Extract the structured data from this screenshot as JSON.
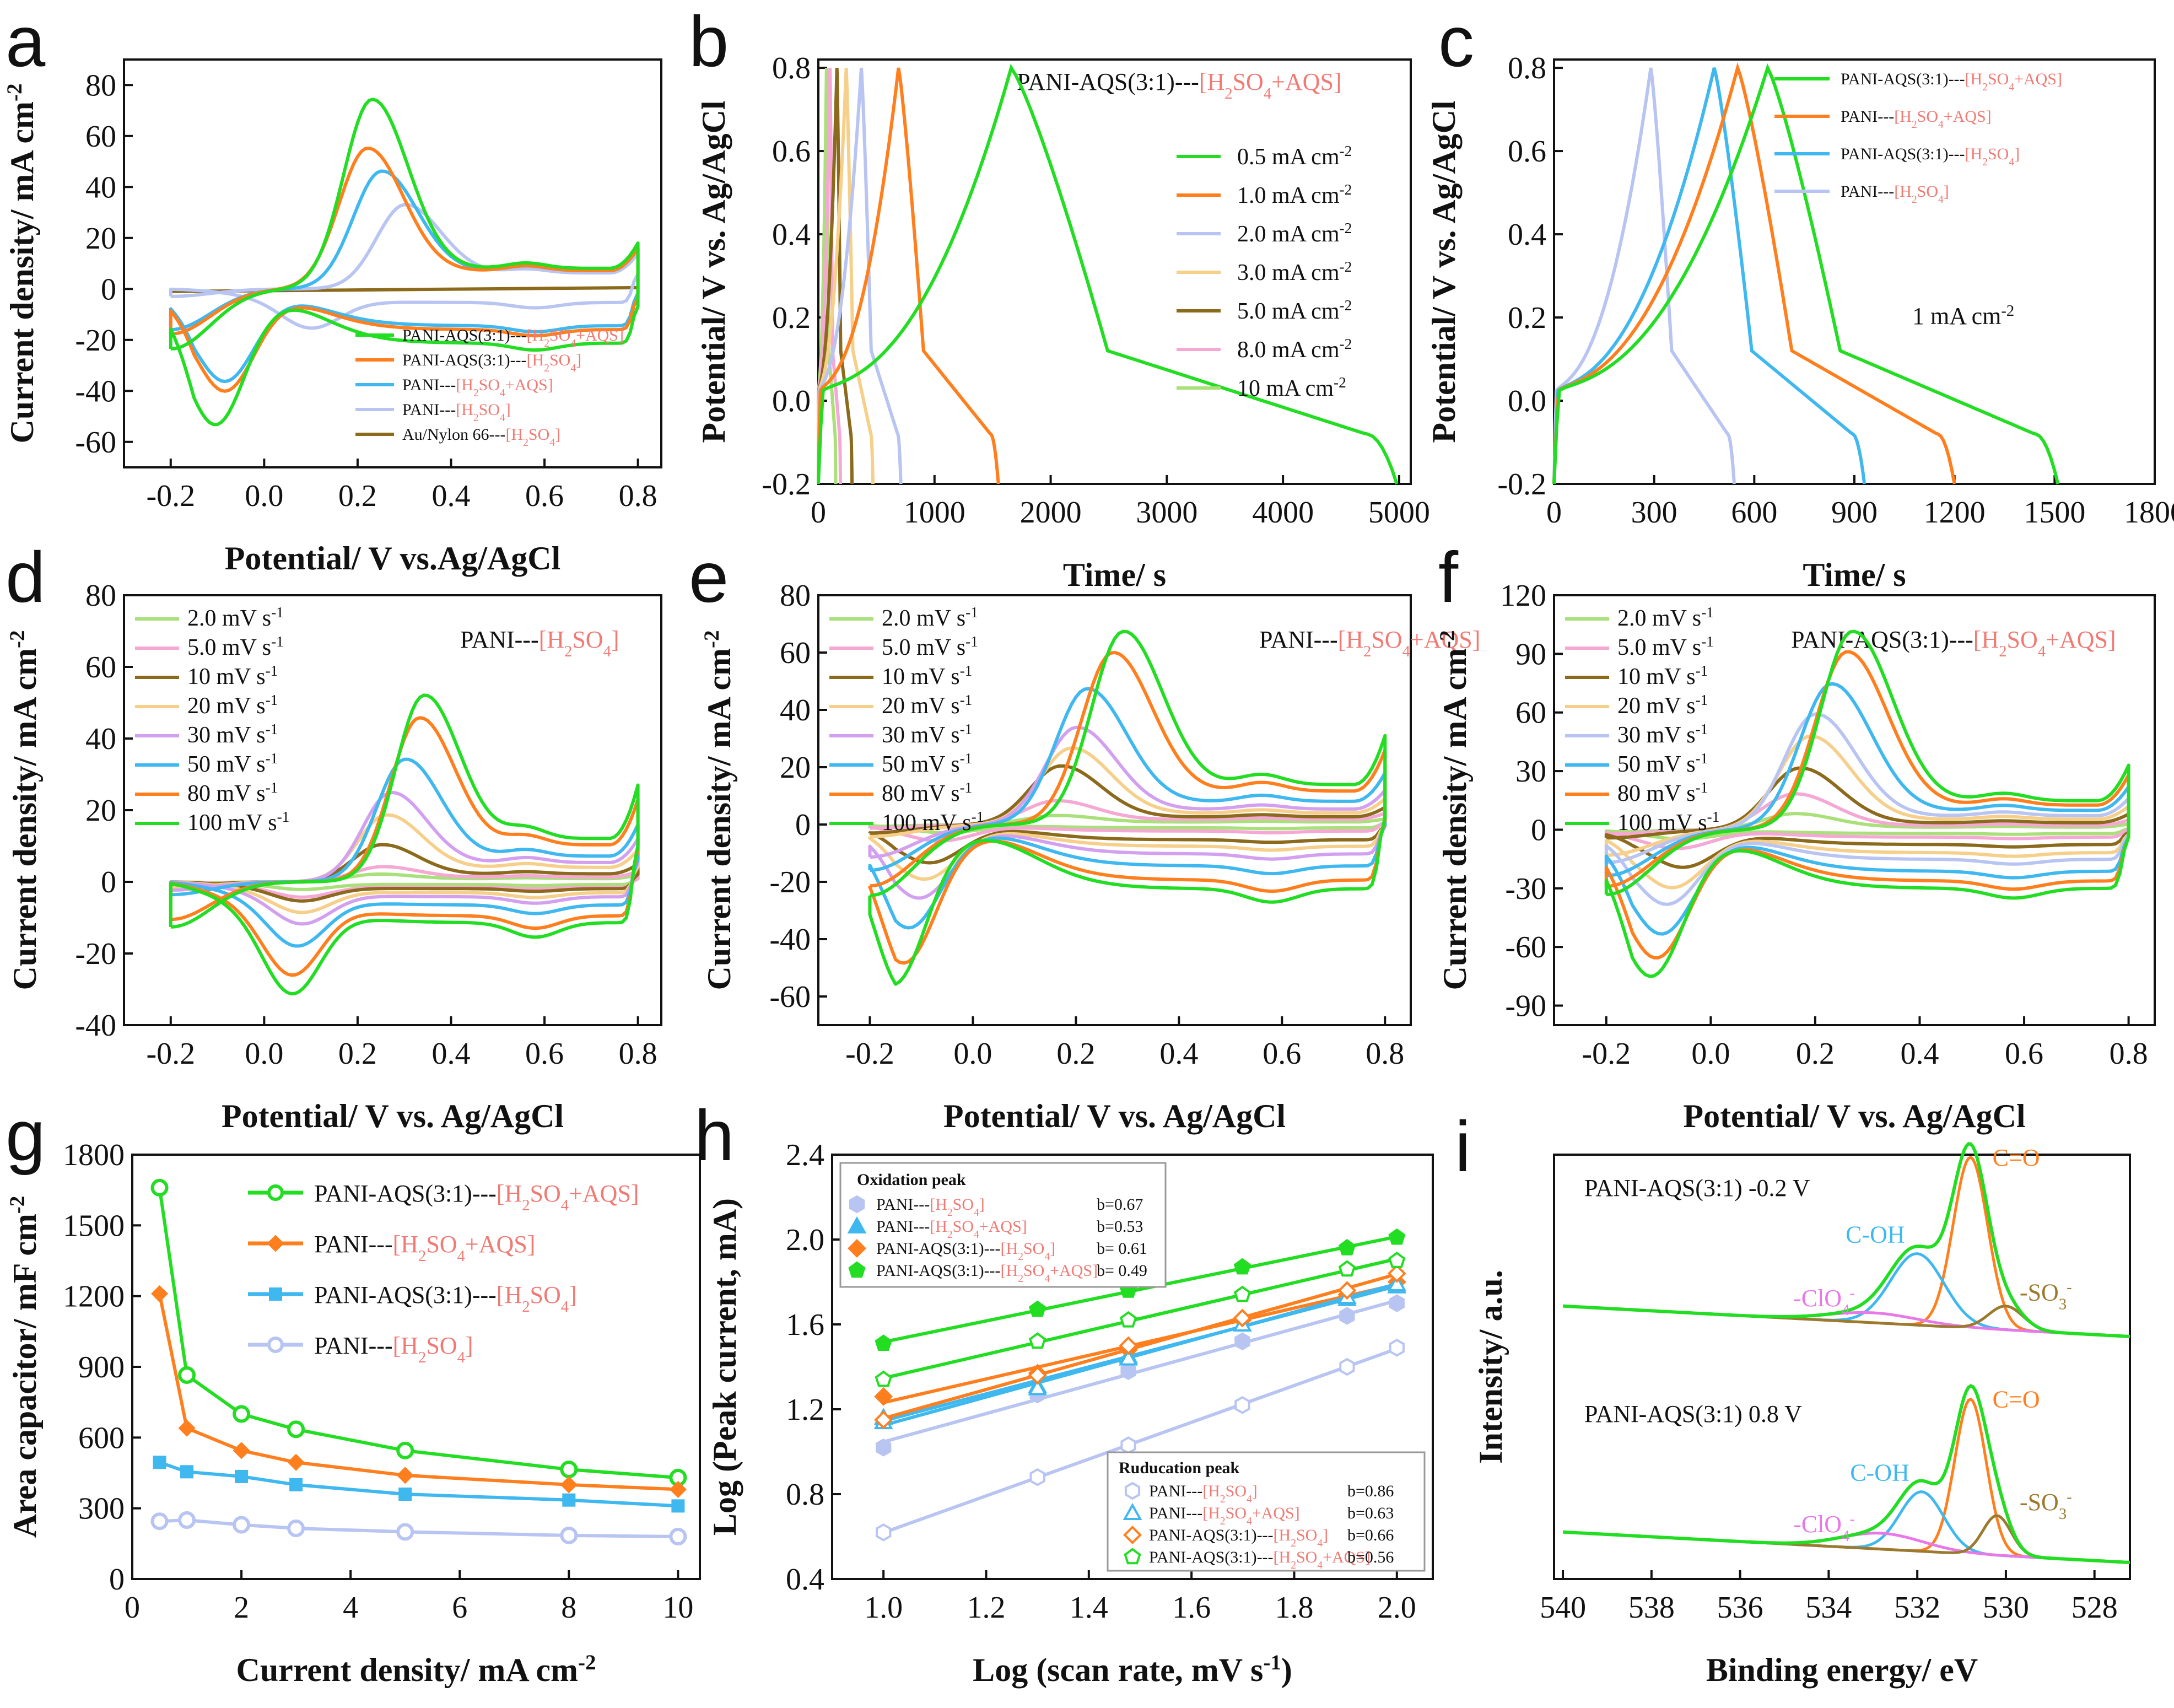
{
  "colors": {
    "green": "#22dd22",
    "orange": "#ff7f1e",
    "blue": "#3fb8f0",
    "lavender": "#b8c4f2",
    "brown": "#8c6a1c",
    "yellow": "#f6cf8a",
    "pink": "#f5a8d4",
    "lightgreen": "#a9e07a",
    "purple": "#d3a0f0",
    "magenta": "#e878e8",
    "olive": "#9b7a2e",
    "red": "#f07a74"
  },
  "chart_data": [
    {
      "id": "a",
      "panel_label": "a",
      "type": "line",
      "xlabel": "Potential/ V vs.Ag/AgCl",
      "ylabel": "Current density/ mA cm",
      "xlim": [
        -0.3,
        0.85
      ],
      "ylim": [
        -70,
        90
      ],
      "xticks": [
        -0.2,
        0.0,
        0.2,
        0.4,
        0.6,
        0.8
      ],
      "yticks": [
        -60,
        -40,
        -20,
        0,
        20,
        40,
        60,
        80
      ],
      "series": [
        {
          "name": "PANI-AQS(3:1)---",
          "tag": "[H2SO4+AQS]",
          "color": "green",
          "ox_peak": [
            0.23,
            73
          ],
          "red_peak": [
            -0.1,
            -56
          ],
          "end_current": 18
        },
        {
          "name": "PANI-AQS(3:1)---",
          "tag": "[H2SO4]",
          "color": "orange",
          "ox_peak": [
            0.22,
            54
          ],
          "red_peak": [
            -0.08,
            -42
          ],
          "end_current": 16
        },
        {
          "name": "PANI---",
          "tag": "[H2SO4+AQS]",
          "color": "blue",
          "ox_peak": [
            0.25,
            45
          ],
          "red_peak": [
            -0.08,
            -38
          ],
          "end_current": 16
        },
        {
          "name": "PANI---",
          "tag": "[H2SO4]",
          "color": "lavender",
          "ox_peak": [
            0.3,
            32
          ],
          "red_peak": [
            0.1,
            -14
          ],
          "end_current": 14
        },
        {
          "name": "Au/Nylon 66---",
          "tag": "[H2SO4]",
          "color": "brown",
          "ox_peak": [
            0.3,
            0.5
          ],
          "red_peak": [
            0.3,
            -0.5
          ],
          "end_current": 1
        }
      ]
    },
    {
      "id": "b",
      "panel_label": "b",
      "type": "line",
      "xlabel": "Time/ s",
      "ylabel": "Potential/ V vs. Ag/AgCl",
      "title": "PANI-AQS(3:1)---",
      "title_tag": "[H2SO4+AQS]",
      "xlim": [
        0,
        5100
      ],
      "ylim": [
        -0.2,
        0.82
      ],
      "xticks": [
        0,
        1000,
        2000,
        3000,
        4000,
        5000
      ],
      "yticks": [
        -0.2,
        0.0,
        0.2,
        0.4,
        0.6,
        0.8
      ],
      "series": [
        {
          "name": "0.5 mA cm",
          "color": "green",
          "peak_time": 1660,
          "end_time": 4980
        },
        {
          "name": "1.0 mA cm",
          "color": "orange",
          "peak_time": 690,
          "end_time": 1550
        },
        {
          "name": "2.0 mA cm",
          "color": "lavender",
          "peak_time": 370,
          "end_time": 710
        },
        {
          "name": "3.0 mA cm",
          "color": "yellow",
          "peak_time": 240,
          "end_time": 470
        },
        {
          "name": "5.0 mA cm",
          "color": "brown",
          "peak_time": 160,
          "end_time": 290
        },
        {
          "name": "8.0 mA cm",
          "color": "pink",
          "peak_time": 100,
          "end_time": 190
        },
        {
          "name": "10 mA cm",
          "color": "lightgreen",
          "peak_time": 70,
          "end_time": 150
        }
      ]
    },
    {
      "id": "c",
      "panel_label": "c",
      "type": "line",
      "xlabel": "Time/ s",
      "ylabel": "Potential/ V vs. Ag/AgCl",
      "annotation": "1 mA cm",
      "xlim": [
        0,
        1800
      ],
      "ylim": [
        -0.2,
        0.82
      ],
      "xticks": [
        0,
        300,
        600,
        900,
        1200,
        1500,
        1800
      ],
      "yticks": [
        -0.2,
        0.0,
        0.2,
        0.4,
        0.6,
        0.8
      ],
      "series": [
        {
          "name": "PANI-AQS(3:1)---",
          "tag": "[H2SO4+AQS]",
          "color": "green",
          "peak_time": 640,
          "end_time": 1510
        },
        {
          "name": "PANI---",
          "tag": "[H2SO4+AQS]",
          "color": "orange",
          "peak_time": 550,
          "end_time": 1200
        },
        {
          "name": "PANI-AQS(3:1)---",
          "tag": "[H2SO4]",
          "color": "blue",
          "peak_time": 480,
          "end_time": 930
        },
        {
          "name": "PANI---",
          "tag": "[H2SO4]",
          "color": "lavender",
          "peak_time": 290,
          "end_time": 540
        }
      ]
    },
    {
      "id": "d",
      "panel_label": "d",
      "type": "line",
      "xlabel": "Potential/ V vs. Ag/AgCl",
      "ylabel": "Current density/ mA cm",
      "title": "PANI---",
      "title_tag": "[H2SO4]",
      "xlim": [
        -0.3,
        0.85
      ],
      "ylim": [
        -40,
        80
      ],
      "xticks": [
        -0.2,
        0.0,
        0.2,
        0.4,
        0.6,
        0.8
      ],
      "yticks": [
        -40,
        -20,
        0,
        20,
        40,
        60,
        80
      ],
      "series": [
        {
          "name": "2.0 mV s",
          "color": "lightgreen",
          "ox_peak": [
            0.24,
            2
          ],
          "red_peak": [
            0.08,
            -2
          ],
          "end_current": 2
        },
        {
          "name": "5.0 mV s",
          "color": "pink",
          "ox_peak": [
            0.25,
            4
          ],
          "red_peak": [
            0.08,
            -4
          ],
          "end_current": 3
        },
        {
          "name": "10 mV s",
          "color": "brown",
          "ox_peak": [
            0.25,
            10
          ],
          "red_peak": [
            0.08,
            -5
          ],
          "end_current": 5
        },
        {
          "name": "20 mV s",
          "color": "yellow",
          "ox_peak": [
            0.26,
            18
          ],
          "red_peak": [
            0.08,
            -8
          ],
          "end_current": 9
        },
        {
          "name": "30 mV s",
          "color": "purple",
          "ox_peak": [
            0.27,
            24
          ],
          "red_peak": [
            0.08,
            -11
          ],
          "end_current": 12
        },
        {
          "name": "50 mV s",
          "color": "blue",
          "ox_peak": [
            0.3,
            33
          ],
          "red_peak": [
            0.07,
            -17
          ],
          "end_current": 16
        },
        {
          "name": "80 mV s",
          "color": "orange",
          "ox_peak": [
            0.33,
            44
          ],
          "red_peak": [
            0.06,
            -25
          ],
          "end_current": 23
        },
        {
          "name": "100 mV s",
          "color": "green",
          "ox_peak": [
            0.34,
            50
          ],
          "red_peak": [
            0.06,
            -30
          ],
          "end_current": 27
        }
      ]
    },
    {
      "id": "e",
      "panel_label": "e",
      "type": "line",
      "xlabel": "Potential/ V vs. Ag/AgCl",
      "ylabel": "Current density/ mA cm",
      "title": "PANI---",
      "title_tag": "[H2SO4+AQS]",
      "xlim": [
        -0.3,
        0.85
      ],
      "ylim": [
        -70,
        80
      ],
      "xticks": [
        -0.2,
        0.0,
        0.2,
        0.4,
        0.6,
        0.8
      ],
      "yticks": [
        -60,
        -40,
        -20,
        0,
        20,
        40,
        60,
        80
      ],
      "series": [
        {
          "name": "2.0 mV s",
          "color": "lightgreen",
          "ox_peak": [
            0.16,
            3
          ],
          "red_peak": [
            -0.05,
            -3
          ],
          "end_current": 2
        },
        {
          "name": "5.0 mV s",
          "color": "pink",
          "ox_peak": [
            0.16,
            8
          ],
          "red_peak": [
            -0.06,
            -6
          ],
          "end_current": 4
        },
        {
          "name": "10 mV s",
          "color": "brown",
          "ox_peak": [
            0.17,
            20
          ],
          "red_peak": [
            -0.08,
            -14
          ],
          "end_current": 6
        },
        {
          "name": "20 mV s",
          "color": "yellow",
          "ox_peak": [
            0.19,
            26
          ],
          "red_peak": [
            -0.09,
            -20
          ],
          "end_current": 9
        },
        {
          "name": "30 mV s",
          "color": "purple",
          "ox_peak": [
            0.2,
            33
          ],
          "red_peak": [
            -0.1,
            -27
          ],
          "end_current": 12
        },
        {
          "name": "50 mV s",
          "color": "blue",
          "ox_peak": [
            0.22,
            46
          ],
          "red_peak": [
            -0.12,
            -38
          ],
          "end_current": 18
        },
        {
          "name": "80 mV s",
          "color": "orange",
          "ox_peak": [
            0.27,
            58
          ],
          "red_peak": [
            -0.13,
            -51
          ],
          "end_current": 26
        },
        {
          "name": "100 mV s",
          "color": "green",
          "ox_peak": [
            0.29,
            65
          ],
          "red_peak": [
            -0.15,
            -59
          ],
          "end_current": 31
        }
      ]
    },
    {
      "id": "f",
      "panel_label": "f",
      "type": "line",
      "xlabel": "Potential/ V vs. Ag/AgCl",
      "ylabel": "Current density/ mA cm",
      "title": "PANI-AQS(3:1)---",
      "title_tag": "[H2SO4+AQS]",
      "xlim": [
        -0.3,
        0.85
      ],
      "ylim": [
        -100,
        120
      ],
      "xticks": [
        -0.2,
        0.0,
        0.2,
        0.4,
        0.6,
        0.8
      ],
      "yticks": [
        -90,
        -60,
        -30,
        0,
        30,
        60,
        90,
        120
      ],
      "series": [
        {
          "name": "2.0 mV s",
          "color": "lightgreen",
          "ox_peak": [
            0.16,
            8
          ],
          "red_peak": [
            -0.05,
            -5
          ],
          "end_current": 3
        },
        {
          "name": "5.0 mV s",
          "color": "pink",
          "ox_peak": [
            0.16,
            18
          ],
          "red_peak": [
            -0.06,
            -10
          ],
          "end_current": 5
        },
        {
          "name": "10 mV s",
          "color": "brown",
          "ox_peak": [
            0.17,
            31
          ],
          "red_peak": [
            -0.05,
            -20
          ],
          "end_current": 8
        },
        {
          "name": "20 mV s",
          "color": "yellow",
          "ox_peak": [
            0.19,
            47
          ],
          "red_peak": [
            -0.07,
            -31
          ],
          "end_current": 12
        },
        {
          "name": "30 mV s",
          "color": "lavender",
          "ox_peak": [
            0.2,
            58
          ],
          "red_peak": [
            -0.08,
            -40
          ],
          "end_current": 16
        },
        {
          "name": "50 mV s",
          "color": "blue",
          "ox_peak": [
            0.23,
            73
          ],
          "red_peak": [
            -0.09,
            -56
          ],
          "end_current": 22
        },
        {
          "name": "80 mV s",
          "color": "orange",
          "ox_peak": [
            0.26,
            89
          ],
          "red_peak": [
            -0.1,
            -69
          ],
          "end_current": 28
        },
        {
          "name": "100 mV s",
          "color": "green",
          "ox_peak": [
            0.27,
            99
          ],
          "red_peak": [
            -0.11,
            -79
          ],
          "end_current": 33
        }
      ]
    },
    {
      "id": "g",
      "panel_label": "g",
      "type": "line",
      "xlabel": "Current density/ mA cm",
      "ylabel": "Area capacitor/ mF cm",
      "xlim": [
        0,
        10.4
      ],
      "ylim": [
        0,
        1800
      ],
      "xticks": [
        0,
        2,
        4,
        6,
        8,
        10
      ],
      "yticks": [
        0,
        300,
        600,
        900,
        1200,
        1500,
        1800
      ],
      "x": [
        0.5,
        1,
        2,
        3,
        5,
        8,
        10
      ],
      "series": [
        {
          "name": "PANI-AQS(3:1)---",
          "tag": "[H2SO4+AQS]",
          "color": "green",
          "marker": "circle",
          "values": [
            1660,
            865,
            700,
            635,
            545,
            465,
            430
          ]
        },
        {
          "name": "PANI---",
          "tag": "[H2SO4+AQS]",
          "color": "orange",
          "marker": "diamond",
          "values": [
            1210,
            640,
            545,
            495,
            440,
            400,
            380
          ]
        },
        {
          "name": "PANI-AQS(3:1)---",
          "tag": "[H2SO4]",
          "color": "blue",
          "marker": "square",
          "values": [
            495,
            455,
            435,
            400,
            360,
            335,
            310
          ]
        },
        {
          "name": "PANI---",
          "tag": "[H2SO4]",
          "color": "lavender",
          "marker": "circle",
          "values": [
            245,
            250,
            230,
            215,
            200,
            185,
            180
          ]
        }
      ]
    },
    {
      "id": "h",
      "panel_label": "h",
      "type": "scatter",
      "xlabel": "Log (scan rate, mV s",
      "ylabel": "Log (Peak current, mA)",
      "xlim": [
        0.9,
        2.07
      ],
      "ylim": [
        0.4,
        2.4
      ],
      "xticks": [
        1.0,
        1.2,
        1.4,
        1.6,
        1.8,
        2.0
      ],
      "yticks": [
        0.4,
        0.8,
        1.2,
        1.6,
        2.0,
        2.4
      ],
      "x": [
        1.0,
        1.3,
        1.477,
        1.699,
        1.903,
        2.0
      ],
      "oxidation_title": "Oxidation peak",
      "reduction_title": "Ruducation peak",
      "oxidation": [
        {
          "name": "PANI---",
          "tag": "[H2SO4]",
          "b": "b=0.67",
          "color": "lavender",
          "marker": "hexagon",
          "values": [
            1.02,
            1.27,
            1.38,
            1.52,
            1.64,
            1.7
          ]
        },
        {
          "name": "PANI---",
          "tag": "[H2SO4+AQS]",
          "b": "b=0.53",
          "color": "blue",
          "marker": "triangle",
          "values": [
            1.16,
            1.31,
            1.45,
            1.6,
            1.72,
            1.78
          ]
        },
        {
          "name": "PANI-AQS(3:1)---",
          "tag": "[H2SO4]",
          "b": "b= 0.61",
          "color": "orange",
          "marker": "diamond",
          "values": [
            1.26,
            1.37,
            1.48,
            1.62,
            1.74,
            1.8
          ]
        },
        {
          "name": "PANI-AQS(3:1)---",
          "tag": "[H2SO4+AQS]",
          "b": "b= 0.49",
          "color": "green",
          "marker": "pentagon",
          "values": [
            1.51,
            1.67,
            1.76,
            1.87,
            1.96,
            2.01
          ]
        }
      ],
      "reduction": [
        {
          "name": "PANI---",
          "tag": "[H2SO4]",
          "b": "b=0.86",
          "color": "lavender",
          "marker": "hexagon",
          "values": [
            0.62,
            0.88,
            1.03,
            1.22,
            1.4,
            1.49
          ]
        },
        {
          "name": "PANI---",
          "tag": "[H2SO4+AQS]",
          "b": "b=0.63",
          "color": "blue",
          "marker": "triangle",
          "values": [
            1.14,
            1.3,
            1.44,
            1.6,
            1.73,
            1.79
          ]
        },
        {
          "name": "PANI-AQS(3:1)---",
          "tag": "[H2SO4]",
          "b": "b=0.66",
          "color": "orange",
          "marker": "diamond",
          "values": [
            1.15,
            1.36,
            1.5,
            1.63,
            1.76,
            1.84
          ]
        },
        {
          "name": "PANI-AQS(3:1)---",
          "tag": "[H2SO4+AQS]",
          "b": "b=0.56",
          "color": "green",
          "marker": "pentagon",
          "values": [
            1.34,
            1.52,
            1.62,
            1.74,
            1.86,
            1.9
          ]
        }
      ]
    },
    {
      "id": "i",
      "panel_label": "i",
      "type": "line",
      "xlabel": "Binding energy/ eV",
      "ylabel": "Intensity/ a.u.",
      "xlim": [
        540.2,
        527.2
      ],
      "reversed_x": true,
      "xticks": [
        540,
        538,
        536,
        534,
        532,
        530,
        528
      ],
      "spectra": [
        {
          "label": "PANI-AQS(3:1)   -0.2 V",
          "peaks": [
            {
              "name": "C=O",
              "center": 530.8,
              "height": 0.86,
              "width": 0.55,
              "color": "orange"
            },
            {
              "name": "C-OH",
              "center": 532.0,
              "height": 0.36,
              "width": 0.85,
              "color": "blue"
            },
            {
              "name": "-ClO",
              "center": 533.0,
              "height": 0.05,
              "width": 1.4,
              "color": "magenta"
            },
            {
              "name": "-SO",
              "center": 530.0,
              "height": 0.12,
              "width": 0.55,
              "color": "olive"
            }
          ]
        },
        {
          "label": "PANI-AQS(3:1)   0.8 V",
          "peaks": [
            {
              "name": "C=O",
              "center": 530.8,
              "height": 0.78,
              "width": 0.5,
              "color": "orange"
            },
            {
              "name": "C-OH",
              "center": 531.9,
              "height": 0.3,
              "width": 0.7,
              "color": "blue"
            },
            {
              "name": "-ClO",
              "center": 532.8,
              "height": 0.08,
              "width": 1.3,
              "color": "magenta"
            },
            {
              "name": "-SO",
              "center": 530.2,
              "height": 0.2,
              "width": 0.45,
              "color": "olive"
            }
          ]
        }
      ]
    }
  ]
}
